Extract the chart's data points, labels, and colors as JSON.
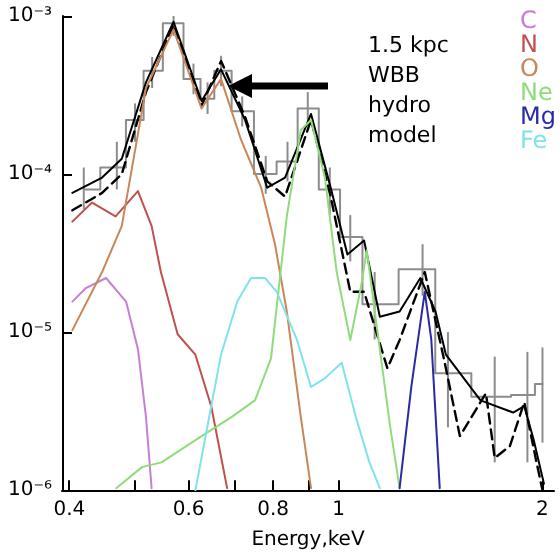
{
  "chart_data": {
    "type": "line",
    "xlabel": "Energy,keV",
    "log": "xy",
    "xlim": [
      0.39,
      2.08
    ],
    "ylim": [
      1e-06,
      0.001
    ],
    "xticks": [
      0.4,
      {
        "value": 0.5,
        "label": null
      },
      0.6,
      {
        "value": 0.7,
        "label": null
      },
      0.8,
      {
        "value": 0.9,
        "label": null
      },
      1,
      2
    ],
    "yticks": [
      {
        "value": 1e-06,
        "label": "10⁻⁶"
      },
      {
        "value": 1e-05,
        "label": "10⁻⁵"
      },
      {
        "value": 0.0001,
        "label": "10⁻⁴"
      },
      {
        "value": 0.001,
        "label": "10⁻³"
      }
    ],
    "grid": false,
    "legend": "top right",
    "marker": "none",
    "annotations": [
      "1.5 kpc WBB hydro model"
    ],
    "series": [
      {
        "type": "step",
        "color": "#8c8c8c",
        "x": [
          0.42,
          0.47,
          0.5,
          0.53,
          0.57,
          0.61,
          0.64,
          0.67,
          0.72,
          0.78,
          0.84,
          0.9,
          0.97,
          1.04,
          1.13,
          1.33,
          1.45,
          1.7,
          1.9,
          2.0
        ],
        "values": [
          8e-05,
          0.00011,
          0.00022,
          0.00045,
          0.0009,
          0.0004,
          0.0003,
          0.00045,
          0.00025,
          0.0001,
          0.00012,
          0.00026,
          8e-05,
          4e-05,
          1.5e-05,
          2.5e-05,
          5.5e-06,
          3.9e-06,
          4e-06,
          4.7e-06
        ],
        "errors": [
          [
            6e-05,
            0.00011
          ],
          [
            8e-05,
            0.00016
          ],
          [
            0.00016,
            0.00028
          ],
          [
            0.00035,
            0.00055
          ],
          [
            0.00075,
            0.001
          ],
          [
            0.00032,
            0.0005
          ],
          [
            0.00024,
            0.00038
          ],
          [
            0.00036,
            0.00056
          ],
          [
            0.0002,
            0.00031
          ],
          [
            7.5e-05,
            0.00013
          ],
          [
            9e-05,
            0.00016
          ],
          [
            0.0002,
            0.00033
          ],
          [
            5.5e-05,
            0.00011
          ],
          [
            2.8e-05,
            5.5e-05
          ],
          [
            9e-06,
            2.4e-05
          ],
          [
            1.7e-05,
            3.6e-05
          ],
          [
            2.5e-06,
            1e-05
          ],
          [
            1.5e-06,
            7e-06
          ],
          [
            1.5e-06,
            7.5e-06
          ],
          [
            2e-06,
            8e-06
          ]
        ]
      },
      {
        "color": "#000000",
        "line_style": "solid",
        "x": [
          0.404,
          0.447,
          0.478,
          0.519,
          0.57,
          0.627,
          0.67,
          0.727,
          0.784,
          0.833,
          0.91,
          0.973,
          1.03,
          1.09,
          1.15,
          1.23,
          1.32,
          1.39,
          1.44,
          1.62,
          1.81,
          1.88,
          1.94,
          2.01
        ],
        "values": [
          7.6e-05,
          9.5e-05,
          0.000125,
          0.00038,
          0.00092,
          0.00029,
          0.00046,
          0.00022,
          8.2e-05,
          9.5e-05,
          0.00024,
          8.2e-05,
          3.1e-05,
          3.8e-05,
          1.25e-05,
          1.35e-05,
          2.2e-05,
          1.35e-05,
          7.2e-06,
          3.7e-06,
          3.1e-06,
          3.4e-06,
          2.1e-06,
          1.1e-06
        ]
      },
      {
        "color": "#000000",
        "line_style": "dashed",
        "x": [
          0.404,
          0.447,
          0.478,
          0.519,
          0.57,
          0.627,
          0.67,
          0.727,
          0.784,
          0.833,
          0.91,
          0.973,
          1.04,
          1.09,
          1.18,
          1.23,
          1.34,
          1.43,
          1.51,
          1.65,
          1.7,
          1.79,
          1.88,
          1.96,
          2.0
        ],
        "values": [
          5.9e-05,
          7.6e-05,
          0.0001,
          0.00033,
          0.00088,
          0.00027,
          0.00052,
          0.00023,
          9e-05,
          7.2e-05,
          0.00022,
          7.2e-05,
          1.8e-05,
          1.8e-05,
          5.9e-06,
          8.9e-06,
          2.4e-05,
          6.8e-06,
          2.2e-06,
          4.1e-06,
          1.6e-06,
          1.9e-06,
          3.6e-06,
          1.5e-06,
          1e-06
        ]
      },
      {
        "name": "C",
        "color": "#c77fd6",
        "x": [
          0.404,
          0.423,
          0.453,
          0.485,
          0.505,
          0.519,
          0.529
        ],
        "values": [
          1.56e-05,
          1.9e-05,
          2.2e-05,
          1.56e-05,
          7.8e-06,
          2.9e-06,
          1.03e-06
        ]
      },
      {
        "name": "N",
        "color": "#c0504d",
        "x": [
          0.404,
          0.432,
          0.468,
          0.505,
          0.529,
          0.546,
          0.578,
          0.614,
          0.648,
          0.684
        ],
        "values": [
          5e-05,
          6.6e-05,
          5.4e-05,
          7.8e-05,
          4.7e-05,
          2.4e-05,
          9.7e-06,
          7.2e-06,
          3.4e-06,
          1.03e-06
        ]
      },
      {
        "name": "O",
        "color": "#c8875a",
        "x": [
          0.404,
          0.447,
          0.478,
          0.519,
          0.57,
          0.627,
          0.67,
          0.717,
          0.768,
          0.805,
          0.838,
          0.879,
          0.91
        ],
        "values": [
          1.03e-05,
          2.4e-05,
          4.7e-05,
          0.00035,
          0.00082,
          0.00026,
          0.0004,
          0.000165,
          8.2e-05,
          3.6e-05,
          1.35e-05,
          2.9e-06,
          1.03e-06
        ]
      },
      {
        "name": "Ne",
        "color": "#8fdc7a",
        "x": [
          0.469,
          0.512,
          0.547,
          0.627,
          0.694,
          0.752,
          0.794,
          0.838,
          0.879,
          0.91,
          0.954,
          0.993,
          1.04,
          1.08,
          1.1,
          1.14,
          1.19,
          1.23
        ],
        "values": [
          1.03e-06,
          1.4e-06,
          1.5e-06,
          2.2e-06,
          2.9e-06,
          3.7e-06,
          6.8e-06,
          5.4e-05,
          0.00019,
          0.00022,
          9.5e-05,
          2.4e-05,
          8.9e-06,
          2e-05,
          3.3e-05,
          1.03e-05,
          2.6e-06,
          1.03e-06
        ]
      },
      {
        "name": "Mg",
        "color": "#2a2aa8",
        "x": [
          1.23,
          1.28,
          1.34,
          1.37,
          1.41
        ],
        "values": [
          1.03e-06,
          4.5e-06,
          1.8e-05,
          9e-06,
          1.03e-06
        ]
      },
      {
        "name": "Fe",
        "color": "#7fe3ea",
        "x": [
          0.614,
          0.648,
          0.67,
          0.708,
          0.742,
          0.778,
          0.81,
          0.867,
          0.91,
          0.954,
          1.01,
          1.06,
          1.11,
          1.15
        ],
        "values": [
          1e-06,
          3.4e-06,
          7.2e-06,
          1.56e-05,
          2.2e-05,
          2.2e-05,
          1.8e-05,
          9e-06,
          4.5e-06,
          5.1e-06,
          6.4e-06,
          2.9e-06,
          1.5e-06,
          1.03e-06
        ]
      }
    ]
  }
}
